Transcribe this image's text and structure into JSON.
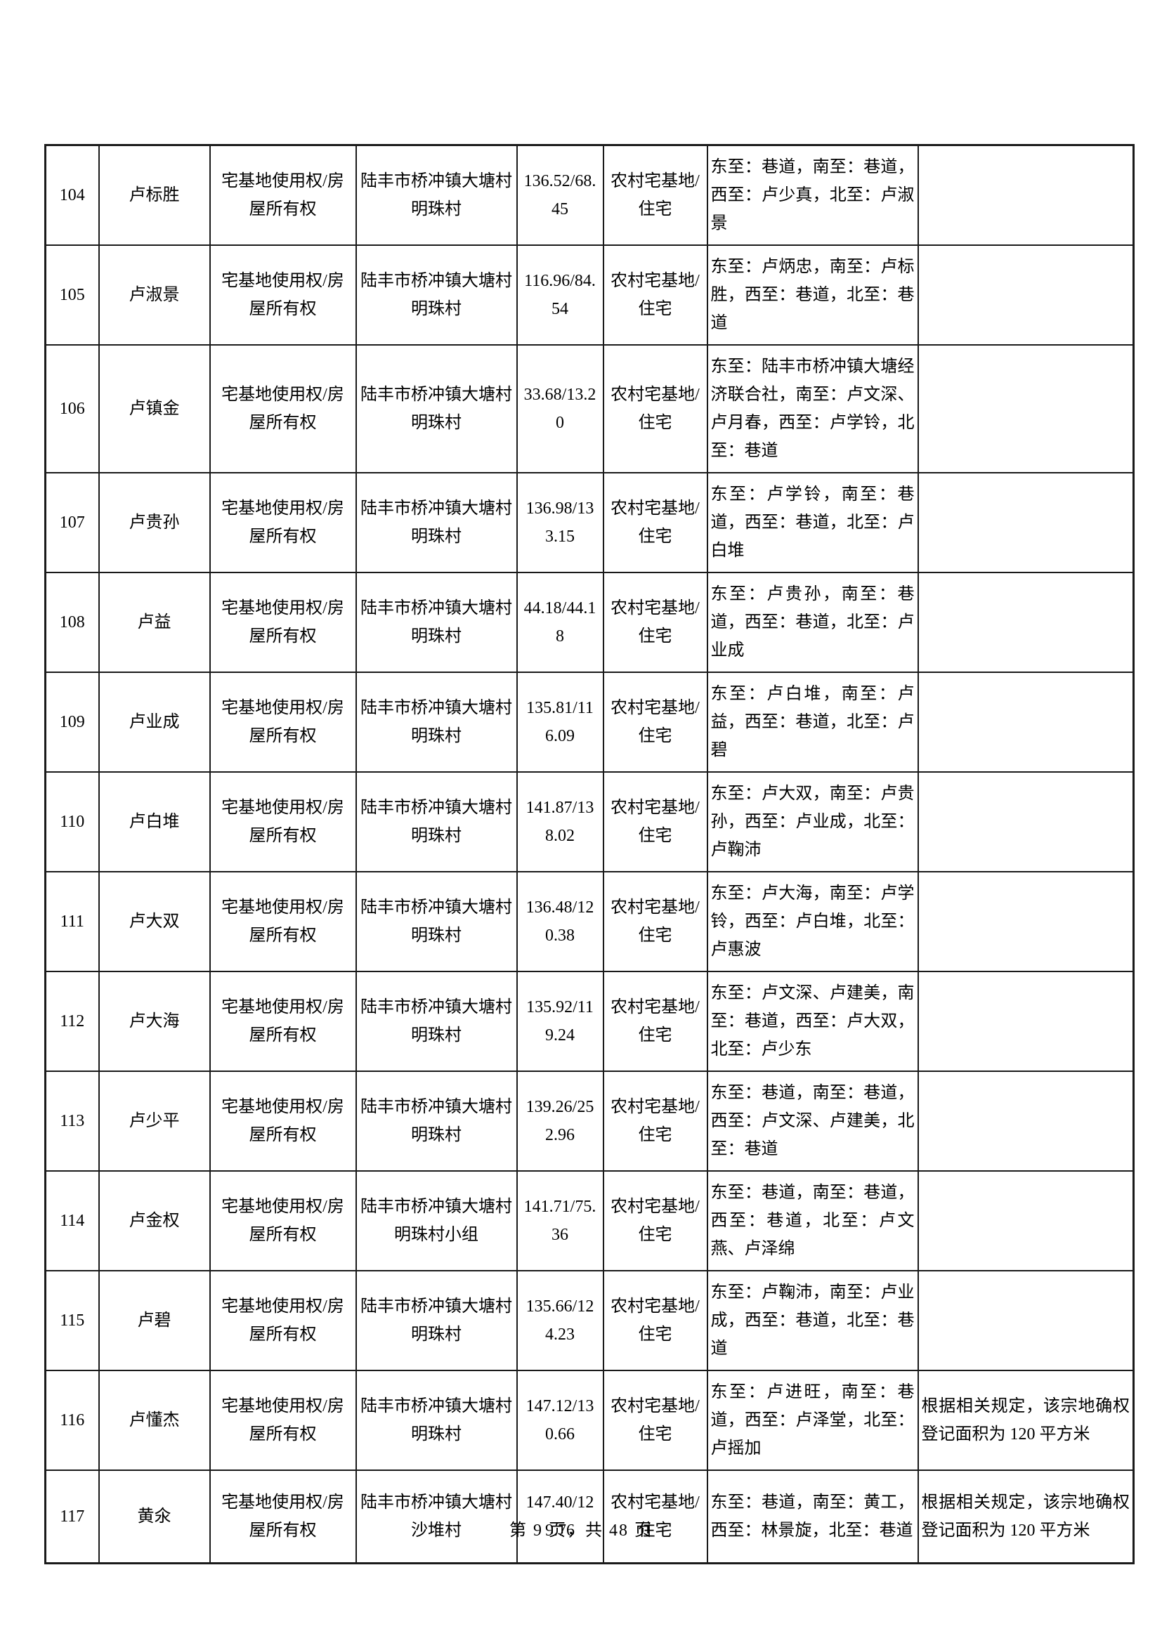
{
  "page": {
    "footer": "第 9 页，共 48 页"
  },
  "table": {
    "rows": [
      {
        "no": "104",
        "name": "卢标胜",
        "right_type": "宅基地使用权/房屋所有权",
        "location": "陆丰市桥冲镇大塘村明珠村",
        "area": "136.52/68.45",
        "land_type": "农村宅基地/住宅",
        "boundary": "东至：巷道，南至：巷道，西至：卢少真，北至：卢淑景",
        "remark": ""
      },
      {
        "no": "105",
        "name": "卢淑景",
        "right_type": "宅基地使用权/房屋所有权",
        "location": "陆丰市桥冲镇大塘村明珠村",
        "area": "116.96/84.54",
        "land_type": "农村宅基地/住宅",
        "boundary": "东至：卢炳忠，南至：卢标胜，西至：巷道，北至：巷道",
        "remark": ""
      },
      {
        "no": "106",
        "name": "卢镇金",
        "right_type": "宅基地使用权/房屋所有权",
        "location": "陆丰市桥冲镇大塘村明珠村",
        "area": "33.68/13.20",
        "land_type": "农村宅基地/住宅",
        "boundary": "东至：陆丰市桥冲镇大塘经济联合社，南至：卢文深、卢月春，西至：卢学铃，北至：巷道",
        "remark": ""
      },
      {
        "no": "107",
        "name": "卢贵孙",
        "right_type": "宅基地使用权/房屋所有权",
        "location": "陆丰市桥冲镇大塘村明珠村",
        "area": "136.98/133.15",
        "land_type": "农村宅基地/住宅",
        "boundary": "东至：卢学铃，南至：巷道，西至：巷道，北至：卢白堆",
        "remark": ""
      },
      {
        "no": "108",
        "name": "卢益",
        "right_type": "宅基地使用权/房屋所有权",
        "location": "陆丰市桥冲镇大塘村明珠村",
        "area": "44.18/44.18",
        "land_type": "农村宅基地/住宅",
        "boundary": "东至：卢贵孙，南至：巷道，西至：巷道，北至：卢业成",
        "remark": ""
      },
      {
        "no": "109",
        "name": "卢业成",
        "right_type": "宅基地使用权/房屋所有权",
        "location": "陆丰市桥冲镇大塘村明珠村",
        "area": "135.81/116.09",
        "land_type": "农村宅基地/住宅",
        "boundary": "东至：卢白堆，南至：卢益，西至：巷道，北至：卢碧",
        "remark": ""
      },
      {
        "no": "110",
        "name": "卢白堆",
        "right_type": "宅基地使用权/房屋所有权",
        "location": "陆丰市桥冲镇大塘村明珠村",
        "area": "141.87/138.02",
        "land_type": "农村宅基地/住宅",
        "boundary": "东至：卢大双，南至：卢贵孙，西至：卢业成，北至：卢鞠沛",
        "remark": ""
      },
      {
        "no": "111",
        "name": "卢大双",
        "right_type": "宅基地使用权/房屋所有权",
        "location": "陆丰市桥冲镇大塘村明珠村",
        "area": "136.48/120.38",
        "land_type": "农村宅基地/住宅",
        "boundary": "东至：卢大海，南至：卢学铃，西至：卢白堆，北至：卢惠波",
        "remark": ""
      },
      {
        "no": "112",
        "name": "卢大海",
        "right_type": "宅基地使用权/房屋所有权",
        "location": "陆丰市桥冲镇大塘村明珠村",
        "area": "135.92/119.24",
        "land_type": "农村宅基地/住宅",
        "boundary": "东至：卢文深、卢建美，南至：巷道，西至：卢大双，北至：卢少东",
        "remark": ""
      },
      {
        "no": "113",
        "name": "卢少平",
        "right_type": "宅基地使用权/房屋所有权",
        "location": "陆丰市桥冲镇大塘村明珠村",
        "area": "139.26/252.96",
        "land_type": "农村宅基地/住宅",
        "boundary": "东至：巷道，南至：巷道，西至：卢文深、卢建美，北至：巷道",
        "remark": ""
      },
      {
        "no": "114",
        "name": "卢金权",
        "right_type": "宅基地使用权/房屋所有权",
        "location": "陆丰市桥冲镇大塘村明珠村小组",
        "area": "141.71/75.36",
        "land_type": "农村宅基地/住宅",
        "boundary": "东至：巷道，南至：巷道，西至：巷道，北至：卢文燕、卢泽绵",
        "remark": ""
      },
      {
        "no": "115",
        "name": "卢碧",
        "right_type": "宅基地使用权/房屋所有权",
        "location": "陆丰市桥冲镇大塘村明珠村",
        "area": "135.66/124.23",
        "land_type": "农村宅基地/住宅",
        "boundary": "东至：卢鞠沛，南至：卢业成，西至：巷道，北至：巷道",
        "remark": ""
      },
      {
        "no": "116",
        "name": "卢懂杰",
        "right_type": "宅基地使用权/房屋所有权",
        "location": "陆丰市桥冲镇大塘村明珠村",
        "area": "147.12/130.66",
        "land_type": "农村宅基地/住宅",
        "boundary": "东至：卢进旺，南至：巷道，西至：卢泽堂，北至：卢摇加",
        "remark": "根据相关规定，该宗地确权登记面积为 120 平方米"
      },
      {
        "no": "117",
        "name": "黄氽",
        "right_type": "宅基地使用权/房屋所有权",
        "location": "陆丰市桥冲镇大塘村沙堆村",
        "area": "147.40/129.76",
        "land_type": "农村宅基地/住宅",
        "boundary": "东至：巷道，南至：黄工，西至：林景旋，北至：巷道",
        "remark": "根据相关规定，该宗地确权登记面积为 120 平方米"
      }
    ]
  }
}
